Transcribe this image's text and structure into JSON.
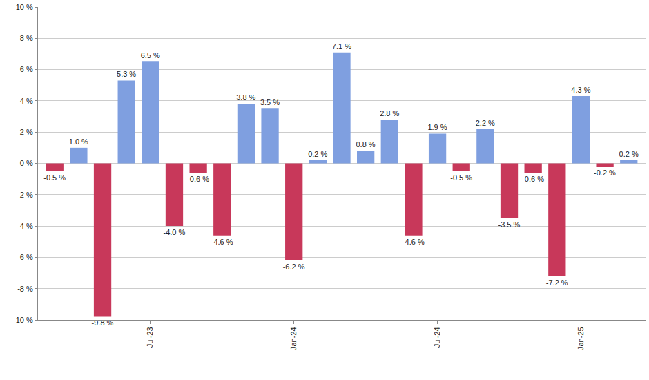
{
  "chart_data": {
    "type": "bar",
    "categories": [
      null,
      null,
      null,
      null,
      "Jul-23",
      null,
      null,
      null,
      null,
      null,
      "Jan-24",
      null,
      null,
      null,
      null,
      null,
      "Jul-24",
      null,
      null,
      null,
      null,
      null,
      "Jan-25",
      null,
      null
    ],
    "values": [
      -0.5,
      1.0,
      -9.8,
      5.3,
      6.5,
      -4.0,
      -0.6,
      -4.6,
      3.8,
      3.5,
      -6.2,
      0.2,
      7.1,
      0.8,
      2.8,
      -4.6,
      1.9,
      -0.5,
      2.2,
      -3.5,
      -0.6,
      -7.2,
      4.3,
      -0.2,
      0.2
    ],
    "value_labels": [
      "-0.5 %",
      "1.0 %",
      "-9.8 %",
      "5.3 %",
      "6.5 %",
      "-4.0 %",
      "-0.6 %",
      "-4.6 %",
      "3.8 %",
      "3.5 %",
      "-6.2 %",
      "0.2 %",
      "7.1 %",
      "0.8 %",
      "2.8 %",
      "-4.6 %",
      "1.9 %",
      "-0.5 %",
      "2.2 %",
      "-3.5 %",
      "-0.6 %",
      "-7.2 %",
      "4.3 %",
      "-0.2 %",
      "0.2 %"
    ],
    "colors": [
      "#c8385a",
      "#7f9fe0",
      "#c8385a",
      "#7f9fe0",
      "#7f9fe0",
      "#c8385a",
      "#c8385a",
      "#c8385a",
      "#7f9fe0",
      "#7f9fe0",
      "#c8385a",
      "#7f9fe0",
      "#7f9fe0",
      "#7f9fe0",
      "#7f9fe0",
      "#c8385a",
      "#7f9fe0",
      "#c8385a",
      "#7f9fe0",
      "#c8385a",
      "#c8385a",
      "#c8385a",
      "#7f9fe0",
      "#c8385a",
      "#7f9fe0"
    ],
    "ylim": [
      -10,
      10
    ],
    "yticks": [
      {
        "value": -10,
        "label": "-10 %"
      },
      {
        "value": -8,
        "label": "-8 %"
      },
      {
        "value": -6,
        "label": "-6 %"
      },
      {
        "value": -4,
        "label": "-4 %"
      },
      {
        "value": -2,
        "label": "-2 %"
      },
      {
        "value": 0,
        "label": "0 %"
      },
      {
        "value": 2,
        "label": "2 %"
      },
      {
        "value": 4,
        "label": "4 %"
      },
      {
        "value": 6,
        "label": "6 %"
      },
      {
        "value": 8,
        "label": "8 %"
      },
      {
        "value": 10,
        "label": "10 %"
      }
    ],
    "grid": true,
    "data_labels": true
  }
}
